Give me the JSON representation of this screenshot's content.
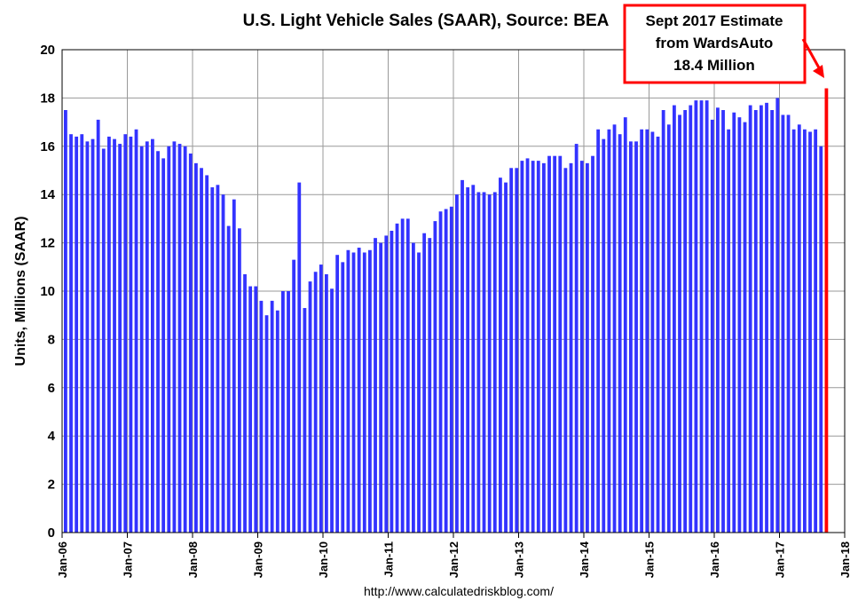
{
  "chart_data": {
    "type": "bar",
    "title": "U.S. Light Vehicle Sales (SAAR), Source: BEA",
    "ylabel": "Units, Millions (SAAR)",
    "xlabel": "",
    "ylim": [
      0,
      20
    ],
    "yticks": [
      "0",
      "2",
      "4",
      "6",
      "8",
      "10",
      "12",
      "14",
      "16",
      "18",
      "20"
    ],
    "xticks": [
      "Jan-06",
      "Jan-07",
      "Jan-08",
      "Jan-09",
      "Jan-10",
      "Jan-11",
      "Jan-12",
      "Jan-13",
      "Jan-14",
      "Jan-15",
      "Jan-16",
      "Jan-17",
      "Jan-18"
    ],
    "x_start": "Jan-06",
    "x_end": "Jan-18",
    "grid": true,
    "bar_color": "#3333ff",
    "highlight_color": "#ff0000",
    "source": "http://www.calculatedriskblog.com/",
    "annotation": {
      "lines": [
        "Sept 2017 Estimate",
        "from WardsAuto",
        "18.4 Million"
      ],
      "value": 18.4,
      "month": "Sep-17"
    },
    "series": [
      {
        "name": "Light Vehicle Sales",
        "start": "Jan-06",
        "values": [
          17.5,
          16.5,
          16.4,
          16.5,
          16.2,
          16.3,
          17.1,
          15.9,
          16.4,
          16.3,
          16.1,
          16.5,
          16.4,
          16.7,
          16.0,
          16.2,
          16.3,
          15.8,
          15.5,
          16.0,
          16.2,
          16.1,
          16.0,
          15.7,
          15.3,
          15.1,
          14.8,
          14.3,
          14.4,
          14.0,
          12.7,
          13.8,
          12.6,
          10.7,
          10.2,
          10.2,
          9.6,
          9.0,
          9.6,
          9.2,
          10.0,
          10.0,
          11.3,
          14.5,
          9.3,
          10.4,
          10.8,
          11.1,
          10.7,
          10.1,
          11.5,
          11.2,
          11.7,
          11.6,
          11.8,
          11.6,
          11.7,
          12.2,
          12.0,
          12.3,
          12.5,
          12.8,
          13.0,
          13.0,
          12.0,
          11.6,
          12.4,
          12.2,
          12.9,
          13.3,
          13.4,
          13.5,
          14.0,
          14.6,
          14.3,
          14.4,
          14.1,
          14.1,
          14.0,
          14.1,
          14.7,
          14.5,
          15.1,
          15.1,
          15.4,
          15.5,
          15.4,
          15.4,
          15.3,
          15.6,
          15.6,
          15.6,
          15.1,
          15.3,
          16.1,
          15.4,
          15.3,
          15.6,
          16.7,
          16.3,
          16.7,
          16.9,
          16.5,
          17.2,
          16.2,
          16.2,
          16.7,
          16.7,
          16.6,
          16.4,
          17.5,
          16.9,
          17.7,
          17.3,
          17.5,
          17.7,
          17.9,
          17.9,
          17.9,
          17.1,
          17.6,
          17.5,
          16.7,
          17.4,
          17.2,
          17.0,
          17.7,
          17.5,
          17.7,
          17.8,
          17.5,
          18.0,
          17.3,
          17.3,
          16.7,
          16.9,
          16.7,
          16.6,
          16.7,
          16.0,
          18.4
        ]
      }
    ]
  }
}
